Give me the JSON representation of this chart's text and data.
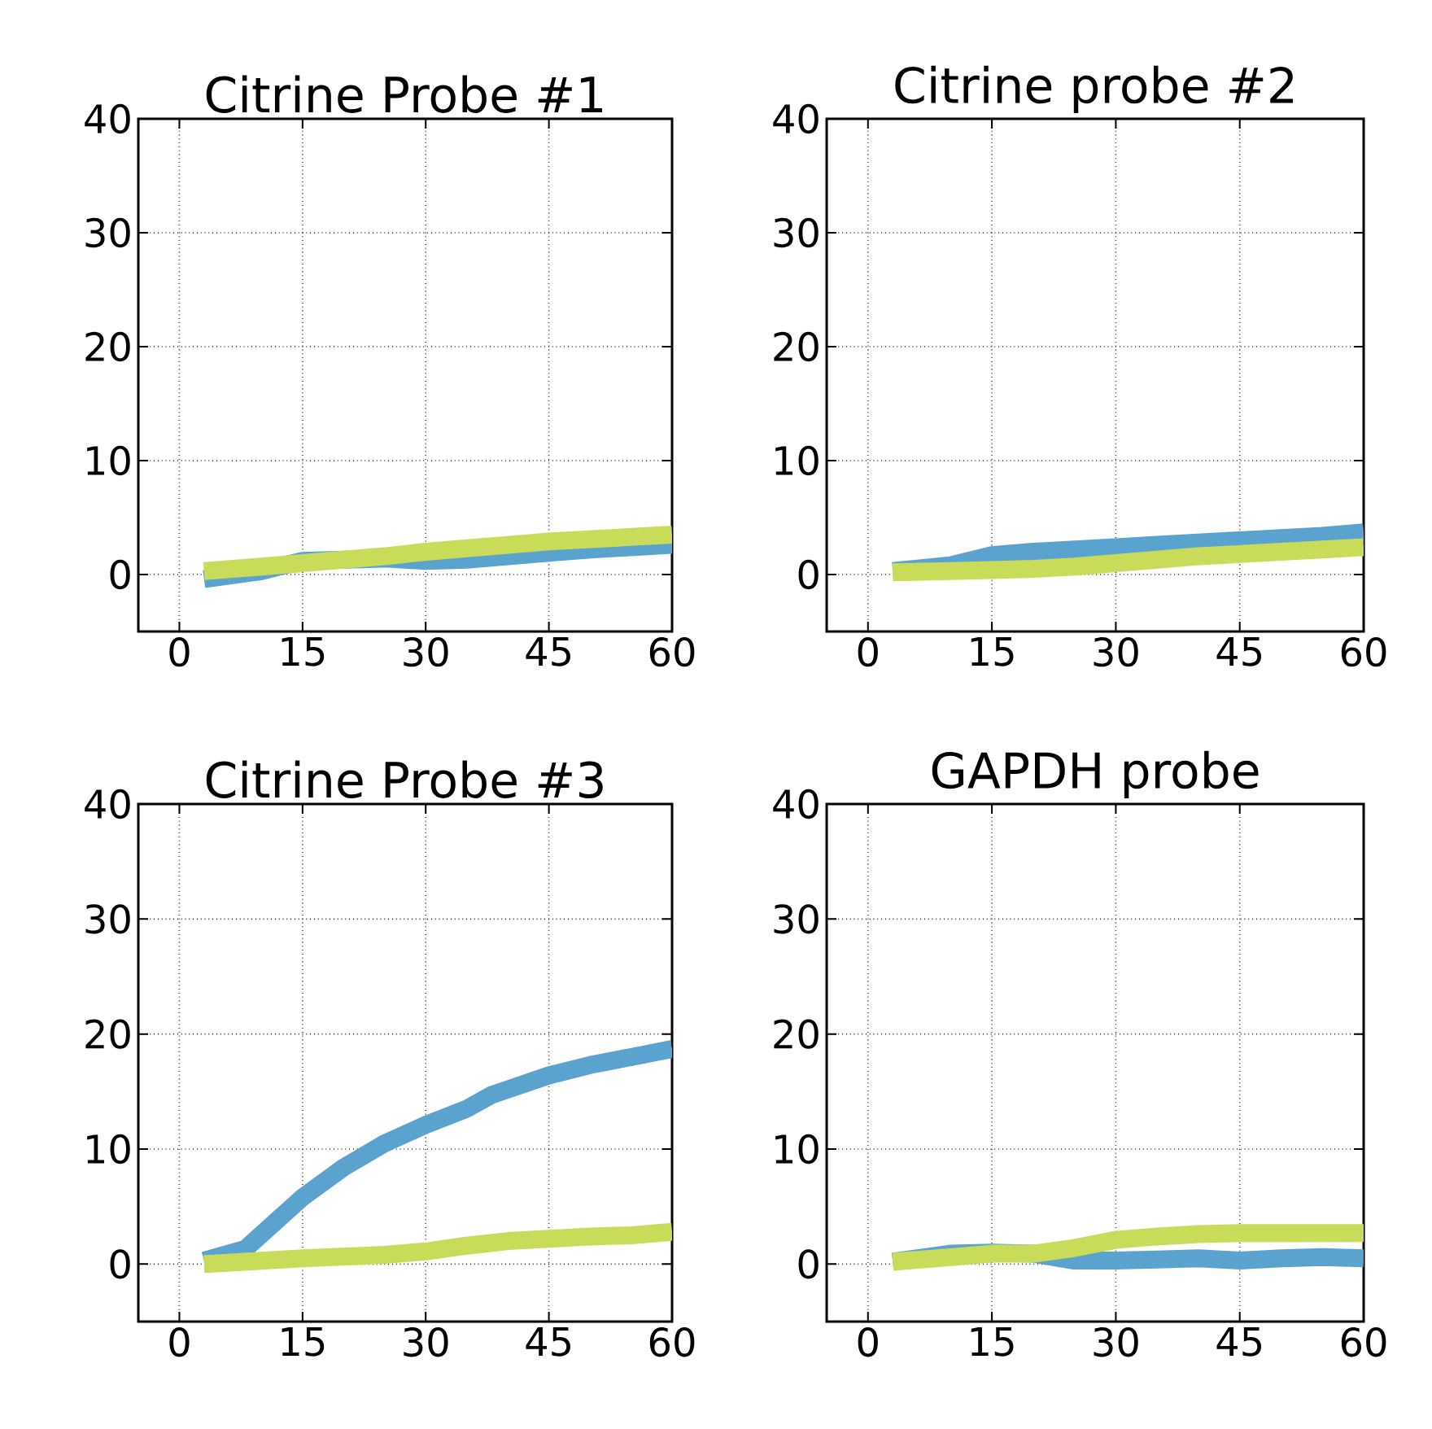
{
  "chart_data": [
    {
      "type": "line",
      "title": "Citrine Probe #1",
      "xlim": [
        -5,
        60
      ],
      "ylim": [
        -5,
        40
      ],
      "xticks": [
        0,
        15,
        30,
        45,
        60
      ],
      "yticks": [
        0,
        10,
        20,
        30,
        40
      ],
      "grid": true,
      "line_style": "solid",
      "series": [
        {
          "color": "#5ba3cf",
          "x": [
            3,
            10,
            15,
            20,
            25,
            30,
            35,
            40,
            45,
            50,
            55,
            60
          ],
          "values": [
            -0.4,
            0.3,
            1.2,
            1.3,
            1.4,
            1.2,
            1.3,
            1.6,
            1.9,
            2.2,
            2.4,
            2.6
          ]
        },
        {
          "color": "#c8dc5a",
          "x": [
            3,
            10,
            15,
            20,
            25,
            30,
            35,
            40,
            45,
            50,
            55,
            60
          ],
          "values": [
            0.3,
            0.7,
            1.0,
            1.3,
            1.6,
            2.0,
            2.3,
            2.6,
            2.9,
            3.1,
            3.3,
            3.5
          ]
        }
      ]
    },
    {
      "type": "line",
      "title": "Citrine probe #2",
      "xlim": [
        -5,
        60
      ],
      "ylim": [
        -5,
        40
      ],
      "xticks": [
        0,
        15,
        30,
        45,
        60
      ],
      "yticks": [
        0,
        10,
        20,
        30,
        40
      ],
      "grid": true,
      "line_style": "solid",
      "series": [
        {
          "color": "#5ba3cf",
          "x": [
            3,
            10,
            15,
            20,
            25,
            30,
            35,
            40,
            45,
            50,
            55,
            60
          ],
          "values": [
            0.3,
            0.8,
            1.7,
            2.0,
            2.2,
            2.4,
            2.6,
            2.8,
            3.0,
            3.2,
            3.4,
            3.7
          ]
        },
        {
          "color": "#c8dc5a",
          "x": [
            3,
            10,
            15,
            20,
            25,
            30,
            35,
            40,
            45,
            50,
            55,
            60
          ],
          "values": [
            0.2,
            0.3,
            0.4,
            0.5,
            0.7,
            1.0,
            1.3,
            1.6,
            1.8,
            2.0,
            2.2,
            2.4
          ]
        }
      ]
    },
    {
      "type": "line",
      "title": "Citrine Probe #3",
      "xlim": [
        -5,
        60
      ],
      "ylim": [
        -5,
        40
      ],
      "xticks": [
        0,
        15,
        30,
        45,
        60
      ],
      "yticks": [
        0,
        10,
        20,
        30,
        40
      ],
      "grid": true,
      "line_style": "solid",
      "series": [
        {
          "color": "#5ba3cf",
          "x": [
            3,
            8,
            15,
            20,
            25,
            30,
            35,
            38,
            45,
            50,
            55,
            60
          ],
          "values": [
            0.3,
            1.3,
            5.8,
            8.4,
            10.5,
            12.1,
            13.5,
            14.7,
            16.4,
            17.3,
            18.0,
            18.7
          ]
        },
        {
          "color": "#c8dc5a",
          "x": [
            3,
            15,
            25,
            30,
            35,
            40,
            45,
            50,
            55,
            60
          ],
          "values": [
            0.0,
            0.5,
            0.8,
            1.1,
            1.6,
            2.0,
            2.2,
            2.4,
            2.5,
            2.8
          ]
        }
      ]
    },
    {
      "type": "line",
      "title": "GAPDH probe",
      "xlim": [
        -5,
        60
      ],
      "ylim": [
        -5,
        40
      ],
      "xticks": [
        0,
        15,
        30,
        45,
        60
      ],
      "yticks": [
        0,
        10,
        20,
        30,
        40
      ],
      "grid": true,
      "line_style": "solid",
      "series": [
        {
          "color": "#5ba3cf",
          "x": [
            3,
            10,
            15,
            20,
            25,
            30,
            35,
            40,
            45,
            50,
            55,
            60
          ],
          "values": [
            0.2,
            0.9,
            1.0,
            0.9,
            0.3,
            0.3,
            0.4,
            0.5,
            0.3,
            0.5,
            0.6,
            0.5
          ]
        },
        {
          "color": "#c8dc5a",
          "x": [
            3,
            10,
            15,
            20,
            25,
            30,
            35,
            40,
            45,
            50,
            55,
            60
          ],
          "values": [
            0.2,
            0.6,
            0.9,
            0.9,
            1.4,
            2.1,
            2.4,
            2.6,
            2.7,
            2.7,
            2.7,
            2.7
          ]
        }
      ]
    }
  ]
}
